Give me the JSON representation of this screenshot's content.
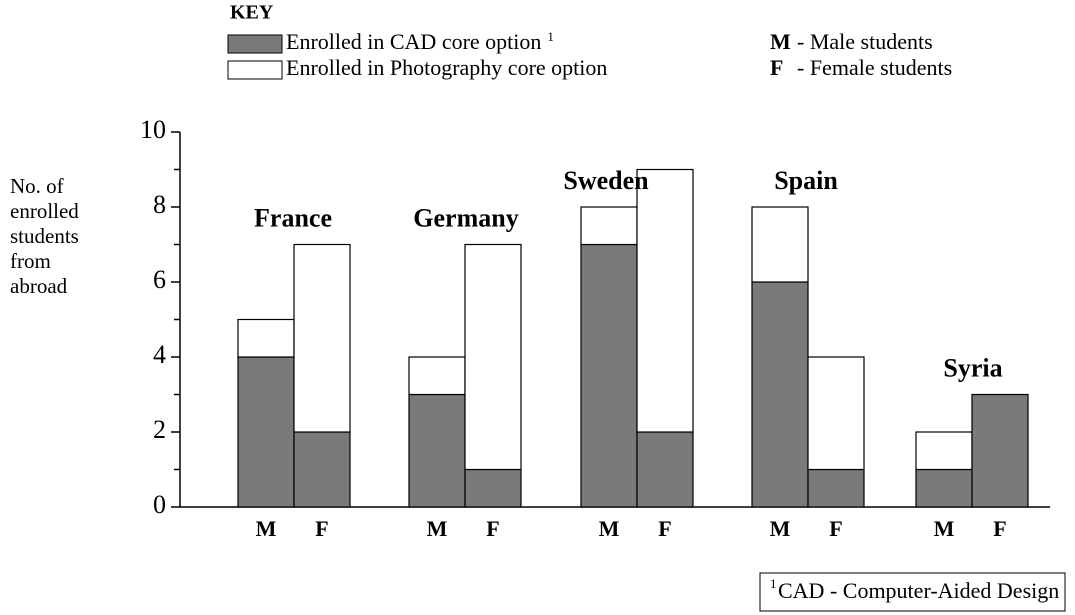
{
  "chart_data": {
    "type": "stacked_bar",
    "key_title": "KEY",
    "groups": [
      "France",
      "Germany",
      "Sweden",
      "Spain",
      "Syria"
    ],
    "categories": [
      "M",
      "F",
      "M",
      "F",
      "M",
      "F",
      "M",
      "F",
      "M",
      "F"
    ],
    "series": [
      {
        "name": "Enrolled in CAD core option",
        "footnote_marker": "1",
        "color": "#7a7a7a",
        "values": [
          4,
          2,
          3,
          1,
          7,
          2,
          6,
          1,
          1,
          3
        ]
      },
      {
        "name": "Enrolled in Photography core option",
        "color": "#ffffff",
        "values": [
          1,
          5,
          1,
          6,
          1,
          7,
          2,
          3,
          1,
          0
        ]
      }
    ],
    "abbreviations": [
      {
        "code": "M",
        "meaning": "- Male students"
      },
      {
        "code": "F",
        "meaning": "- Female students"
      }
    ],
    "y_label_lines": [
      "No. of",
      "enrolled",
      "students",
      "from",
      "abroad"
    ],
    "ylim": [
      0,
      10
    ],
    "yticks": [
      0,
      2,
      4,
      6,
      8,
      10
    ],
    "minor_yticks": [
      1,
      3,
      5,
      7,
      9
    ],
    "footnote": {
      "marker": "1",
      "text": "CAD - Computer-Aided Design"
    }
  }
}
